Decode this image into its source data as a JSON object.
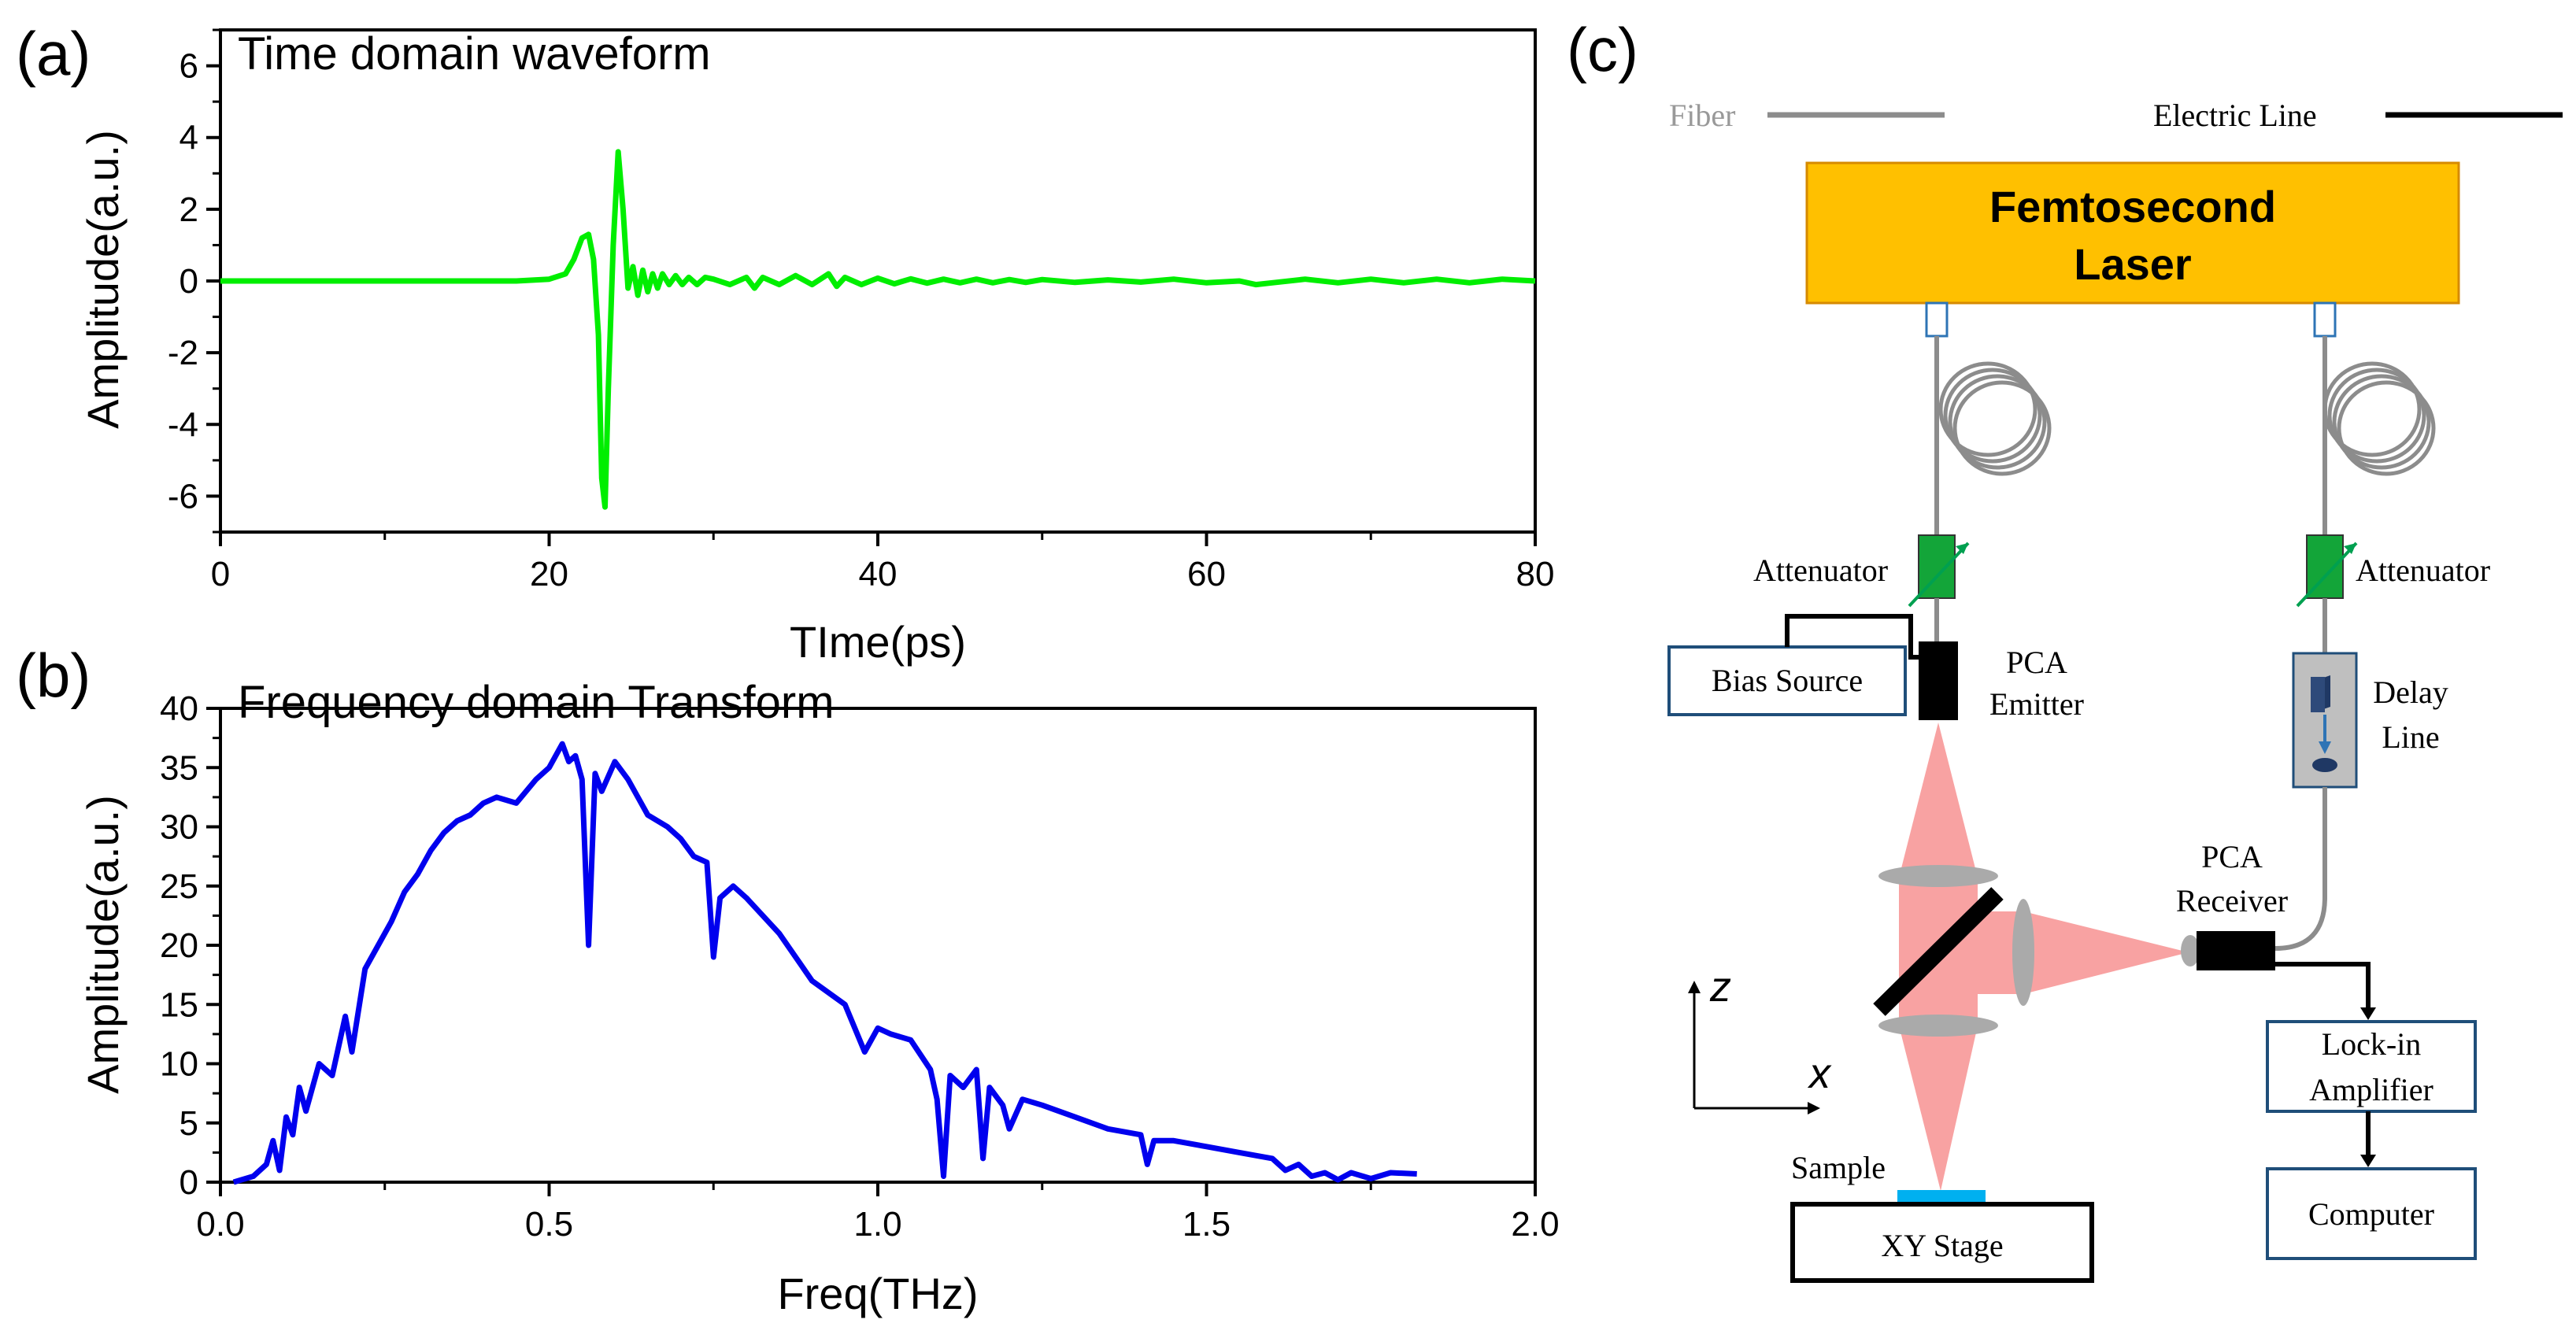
{
  "panels": {
    "a": "(a)",
    "b": "(b)",
    "c": "(c)"
  },
  "plot_a": {
    "title": "Time domain waveform"
  },
  "plot_b": {
    "title": "Frequency domain Transform"
  },
  "chart_data": [
    {
      "type": "line",
      "title": "Time domain waveform",
      "xlabel": "TIme(ps)",
      "ylabel": "Amplitude(a.u.)",
      "xlim": [
        0,
        80
      ],
      "ylim": [
        -7,
        7
      ],
      "xticks": [
        0,
        20,
        40,
        60,
        80
      ],
      "xtick_labels": [
        "0",
        "20",
        "40",
        "60",
        "80"
      ],
      "yticks": [
        6,
        4,
        2,
        0,
        -2,
        -4,
        -6
      ],
      "ytick_labels": [
        "6",
        "4",
        "2",
        "0",
        "-2",
        "-4",
        "-6"
      ],
      "color": "#00ee00",
      "series": [
        {
          "name": "waveform",
          "x": [
            0,
            10,
            18,
            20,
            21,
            21.5,
            22,
            22.4,
            22.7,
            23.0,
            23.2,
            23.4,
            23.6,
            23.9,
            24.2,
            24.5,
            24.8,
            25.1,
            25.4,
            25.7,
            26.0,
            26.3,
            26.6,
            26.9,
            27.3,
            27.7,
            28.1,
            28.5,
            29.0,
            29.5,
            30,
            31,
            32,
            32.5,
            33,
            34,
            35,
            36,
            37,
            37.5,
            38,
            39,
            40,
            41,
            42,
            43,
            44,
            45,
            46,
            47,
            48,
            49,
            50,
            52,
            54,
            56,
            58,
            60,
            62,
            63,
            64,
            66,
            68,
            70,
            72,
            74,
            76,
            78,
            80
          ],
          "y": [
            0,
            0,
            0,
            0.05,
            0.2,
            0.6,
            1.2,
            1.3,
            0.6,
            -1.5,
            -5.5,
            -6.3,
            -3.0,
            1.0,
            3.6,
            2.0,
            -0.2,
            0.4,
            -0.4,
            0.3,
            -0.3,
            0.2,
            -0.2,
            0.2,
            -0.1,
            0.15,
            -0.1,
            0.1,
            -0.1,
            0.1,
            0.05,
            -0.1,
            0.1,
            -0.2,
            0.1,
            -0.1,
            0.15,
            -0.1,
            0.2,
            -0.15,
            0.1,
            -0.1,
            0.08,
            -0.08,
            0.06,
            -0.06,
            0.05,
            -0.05,
            0.05,
            -0.05,
            0.04,
            -0.04,
            0.04,
            -0.04,
            0.03,
            -0.03,
            0.05,
            -0.05,
            0.0,
            -0.1,
            -0.05,
            0.05,
            -0.05,
            0.05,
            -0.05,
            0.05,
            -0.05,
            0.05,
            0.0
          ]
        }
      ]
    },
    {
      "type": "line",
      "title": "Frequency domain Transform",
      "xlabel": "Freq(THz)",
      "ylabel": "Amplitude(a.u.)",
      "xlim": [
        0,
        2.0
      ],
      "ylim": [
        0,
        40
      ],
      "xticks": [
        0.0,
        0.5,
        1.0,
        1.5,
        2.0
      ],
      "xtick_labels": [
        "0.0",
        "0.5",
        "1.0",
        "1.5",
        "2.0"
      ],
      "yticks": [
        0,
        5,
        10,
        15,
        20,
        25,
        30,
        35,
        40
      ],
      "ytick_labels": [
        "0",
        "5",
        "10",
        "15",
        "20",
        "25",
        "30",
        "35",
        "40"
      ],
      "color": "#0000ee",
      "series": [
        {
          "name": "spectrum",
          "x": [
            0.02,
            0.05,
            0.07,
            0.08,
            0.09,
            0.1,
            0.11,
            0.12,
            0.13,
            0.15,
            0.17,
            0.19,
            0.2,
            0.22,
            0.24,
            0.26,
            0.28,
            0.3,
            0.32,
            0.34,
            0.36,
            0.38,
            0.4,
            0.42,
            0.45,
            0.48,
            0.5,
            0.52,
            0.53,
            0.54,
            0.55,
            0.56,
            0.57,
            0.58,
            0.6,
            0.62,
            0.65,
            0.68,
            0.7,
            0.72,
            0.74,
            0.75,
            0.76,
            0.78,
            0.8,
            0.85,
            0.9,
            0.95,
            0.98,
            1.0,
            1.02,
            1.05,
            1.08,
            1.09,
            1.1,
            1.11,
            1.13,
            1.15,
            1.16,
            1.17,
            1.19,
            1.2,
            1.22,
            1.25,
            1.3,
            1.35,
            1.4,
            1.41,
            1.42,
            1.45,
            1.5,
            1.55,
            1.6,
            1.62,
            1.64,
            1.66,
            1.68,
            1.7,
            1.72,
            1.75,
            1.78,
            1.82
          ],
          "y": [
            0,
            0.5,
            1.5,
            3.5,
            1.0,
            5.5,
            4.0,
            8.0,
            6.0,
            10.0,
            9.0,
            14.0,
            11.0,
            18.0,
            20.0,
            22.0,
            24.5,
            26.0,
            28.0,
            29.5,
            30.5,
            31.0,
            32.0,
            32.5,
            32.0,
            34.0,
            35.0,
            37.0,
            35.5,
            36.0,
            34.0,
            20.0,
            34.5,
            33.0,
            35.5,
            34.0,
            31.0,
            30.0,
            29.0,
            27.5,
            27.0,
            19.0,
            24.0,
            25.0,
            24.0,
            21.0,
            17.0,
            15.0,
            11.0,
            13.0,
            12.5,
            12.0,
            9.5,
            7.0,
            0.5,
            9.0,
            8.0,
            9.5,
            2.0,
            8.0,
            6.5,
            4.5,
            7.0,
            6.5,
            5.5,
            4.5,
            4.0,
            1.5,
            3.5,
            3.5,
            3.0,
            2.5,
            2.0,
            1.0,
            1.5,
            0.5,
            0.8,
            0.2,
            0.8,
            0.3,
            0.8,
            0.7
          ]
        }
      ]
    }
  ],
  "diagram": {
    "legend": {
      "fiber": "Fiber",
      "electric_line": "Electric Line"
    },
    "laser": {
      "line1": "Femtosecond",
      "line2": "Laser"
    },
    "attenuator_left": "Attenuator",
    "attenuator_right": "Attenuator",
    "bias_source": "Bias Source",
    "pca_emitter": {
      "line1": "PCA",
      "line2": "Emitter"
    },
    "delay_line": {
      "line1": "Delay",
      "line2": "Line"
    },
    "pca_receiver": {
      "line1": "PCA",
      "line2": "Receiver"
    },
    "lockin": {
      "line1": "Lock-in",
      "line2": "Amplifier"
    },
    "computer": "Computer",
    "sample": "Sample",
    "xy_stage": "XY Stage",
    "axis_z": "z",
    "axis_x": "x"
  },
  "colors": {
    "laser_fill": "#ffc000",
    "laser_border": "#d68a00",
    "fiber": "#8c8c8c",
    "beam": "#f8a2a2",
    "attenuator": "#13a539",
    "attenuator_arrow": "#00a050",
    "box_border": "#1f4e79",
    "sample": "#00b0f0",
    "lens": "#aaaaaa",
    "delay_fill": "#bfbfbf",
    "delay_arrow": "#2e74b5"
  }
}
